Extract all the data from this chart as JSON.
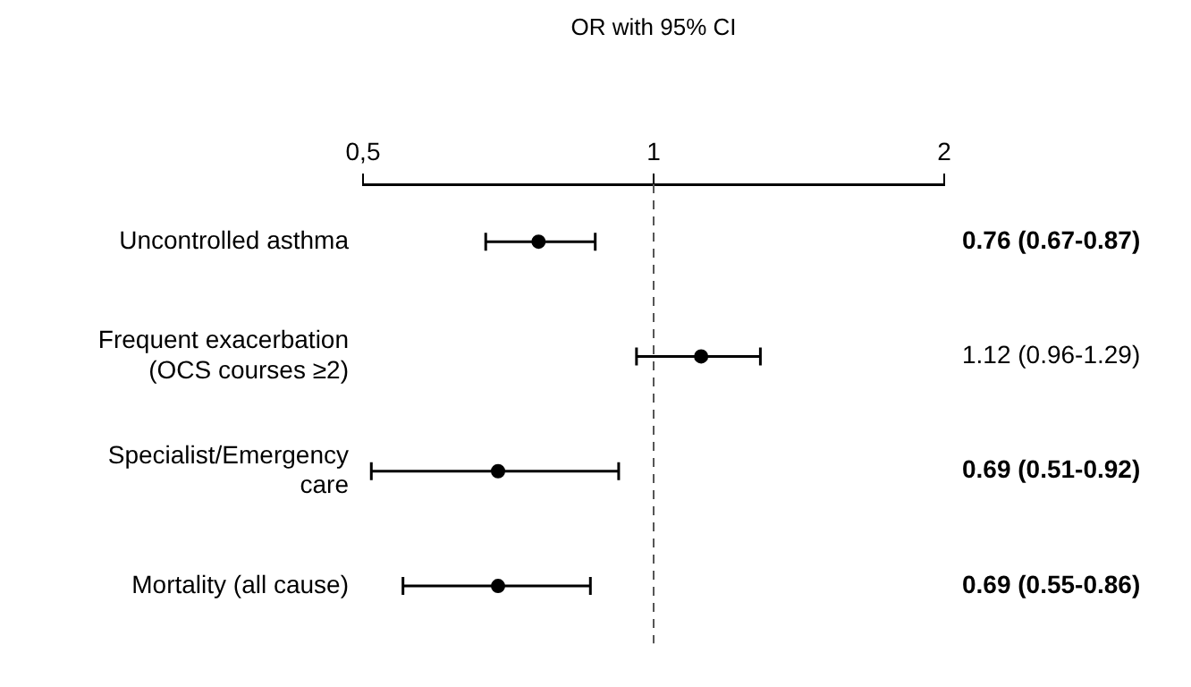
{
  "chart_data": {
    "type": "scatter",
    "orientation": "horizontal",
    "xlabel": "OR with 95% CI",
    "categories": [
      "Uncontrolled asthma",
      "Frequent exacerbation (OCS courses ≥2)",
      "Specialist/Emergency care",
      "Mortality (all cause)"
    ],
    "values": [
      0.76,
      1.12,
      0.69,
      0.69
    ],
    "errors": [
      [
        0.67,
        0.87
      ],
      [
        0.96,
        1.29
      ],
      [
        0.51,
        0.92
      ],
      [
        0.55,
        0.86
      ]
    ],
    "value_labels": [
      "0.76 (0.67-0.87)",
      "1.12 (0.96-1.29)",
      "0.69 (0.51-0.92)",
      "0.69 (0.55-0.86)"
    ],
    "color": "#000000",
    "marker": "circle",
    "log": "x",
    "xlim": [
      0.5,
      2
    ],
    "xticks": [
      {
        "value": 0.5,
        "label": "0,5"
      },
      1,
      2
    ],
    "ref_lines": [
      {
        "axis": "x",
        "value": 1,
        "line_style": "dashed",
        "color": "#555555"
      }
    ],
    "grid": false,
    "legend": false
  }
}
